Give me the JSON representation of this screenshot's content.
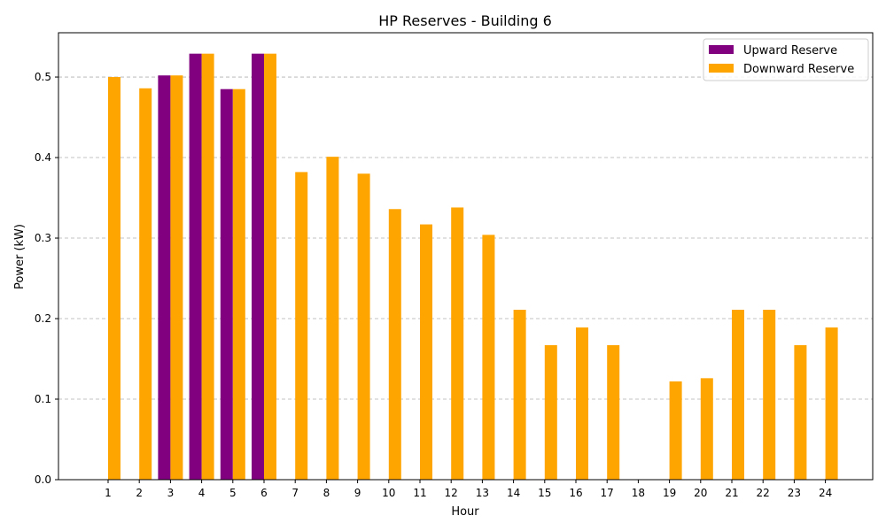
{
  "chart_data": {
    "type": "bar",
    "title": "HP Reserves - Building 6",
    "xlabel": "Hour",
    "ylabel": "Power (kW)",
    "categories": [
      "1",
      "2",
      "3",
      "4",
      "5",
      "6",
      "7",
      "8",
      "9",
      "10",
      "11",
      "12",
      "13",
      "14",
      "15",
      "16",
      "17",
      "18",
      "19",
      "20",
      "21",
      "22",
      "23",
      "24"
    ],
    "series": [
      {
        "name": "Upward Reserve",
        "color": "#800080",
        "values": [
          0,
          0,
          0.502,
          0.529,
          0.485,
          0.529,
          0,
          0,
          0,
          0,
          0,
          0,
          0,
          0,
          0,
          0,
          0,
          0,
          0,
          0,
          0,
          0,
          0,
          0
        ]
      },
      {
        "name": "Downward Reserve",
        "color": "#ffa500",
        "values": [
          0.5,
          0.486,
          0.502,
          0.529,
          0.485,
          0.529,
          0.382,
          0.401,
          0.38,
          0.336,
          0.317,
          0.338,
          0.304,
          0.211,
          0.167,
          0.189,
          0.167,
          0,
          0.122,
          0.126,
          0.211,
          0.211,
          0.167,
          0.189
        ]
      }
    ],
    "ylim": [
      0,
      0.555
    ],
    "yticks": [
      "0.0",
      "0.1",
      "0.2",
      "0.3",
      "0.4",
      "0.5"
    ],
    "grid": true,
    "legend_position": "top-right"
  }
}
